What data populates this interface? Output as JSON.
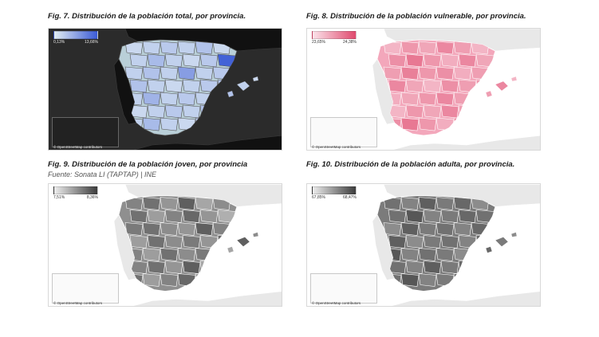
{
  "figures": [
    {
      "title": "Fig. 7. Distribución de la población total, por provincia.",
      "legend_min": "0,13%",
      "legend_max": "13,66%",
      "attribution": "© OpenStreetMap contributors",
      "theme": "dark",
      "colors": {
        "background": "#2b2b2b",
        "land": "#161616",
        "region": "#b9cfd8",
        "border": "#555555",
        "ramp_low": "#e3eef3",
        "ramp_high": "#3b5bd6",
        "text": "#e6e6e6"
      }
    },
    {
      "title": "Fig. 8. Distribución de la población vulnerable, por provincia.",
      "legend_min": "23,65%",
      "legend_max": "24,38%",
      "attribution": "© OpenStreetMap contributors",
      "theme": "light",
      "colors": {
        "background": "#ffffff",
        "land": "#ececec",
        "region": "#f3a7bb",
        "border": "#ffffff",
        "ramp_low": "#fbe3ea",
        "ramp_high": "#e04a6e",
        "text": "#333333"
      }
    },
    {
      "title": "Fig. 9. Distribución de la población joven, por provincia",
      "subtitle": "Fuente: Sonata LI (TAPTAP) | INE",
      "legend_min": "7,51%",
      "legend_max": "8,36%",
      "attribution": "© OpenStreetMap contributors",
      "theme": "light",
      "colors": {
        "background": "#ffffff",
        "land": "#ececec",
        "region": "#8f8f8f",
        "border": "#ffffff",
        "ramp_low": "#ededed",
        "ramp_high": "#3c3c3c",
        "text": "#333333"
      }
    },
    {
      "title": "Fig. 10. Distribución de la población adulta, por provincia.",
      "legend_min": "67,85%",
      "legend_max": "68,47%",
      "attribution": "© OpenStreetMap contributors",
      "theme": "light",
      "colors": {
        "background": "#ffffff",
        "land": "#ececec",
        "region": "#7b7b7b",
        "border": "#ffffff",
        "ramp_low": "#ededed",
        "ramp_high": "#3c3c3c",
        "text": "#333333"
      }
    }
  ],
  "spain_provinces_illustrative_shades": {
    "fig7": [
      0.15,
      0.2,
      0.25,
      0.2,
      0.3,
      0.15,
      0.2,
      0.35,
      0.2,
      0.15,
      0.25,
      0.95,
      0.2,
      0.3,
      0.2,
      0.55,
      0.2,
      0.25,
      0.3,
      0.2,
      0.15,
      0.2,
      0.25,
      0.3,
      0.2,
      0.4,
      0.2,
      0.25,
      0.2,
      0.15
    ],
    "fig8": [
      0.3,
      0.5,
      0.4,
      0.6,
      0.45,
      0.3,
      0.55,
      0.7,
      0.5,
      0.35,
      0.6,
      0.4,
      0.45,
      0.65,
      0.5,
      0.55,
      0.35,
      0.45,
      0.6,
      0.4,
      0.3,
      0.55,
      0.45,
      0.5,
      0.35,
      0.4,
      0.5,
      0.6,
      0.45,
      0.35
    ],
    "fig9": [
      0.6,
      0.7,
      0.5,
      0.8,
      0.4,
      0.55,
      0.7,
      0.45,
      0.6,
      0.75,
      0.5,
      0.35,
      0.65,
      0.7,
      0.55,
      0.5,
      0.8,
      0.6,
      0.45,
      0.7,
      0.55,
      0.65,
      0.5,
      0.75,
      0.6,
      0.45,
      0.7,
      0.55,
      0.65,
      0.5
    ],
    "fig10": [
      0.7,
      0.6,
      0.8,
      0.65,
      0.75,
      0.55,
      0.7,
      0.85,
      0.6,
      0.65,
      0.75,
      0.7,
      0.55,
      0.8,
      0.65,
      0.7,
      0.6,
      0.75,
      0.8,
      0.55,
      0.65,
      0.7,
      0.6,
      0.75,
      0.85,
      0.6,
      0.7,
      0.65,
      0.55,
      0.7
    ]
  }
}
